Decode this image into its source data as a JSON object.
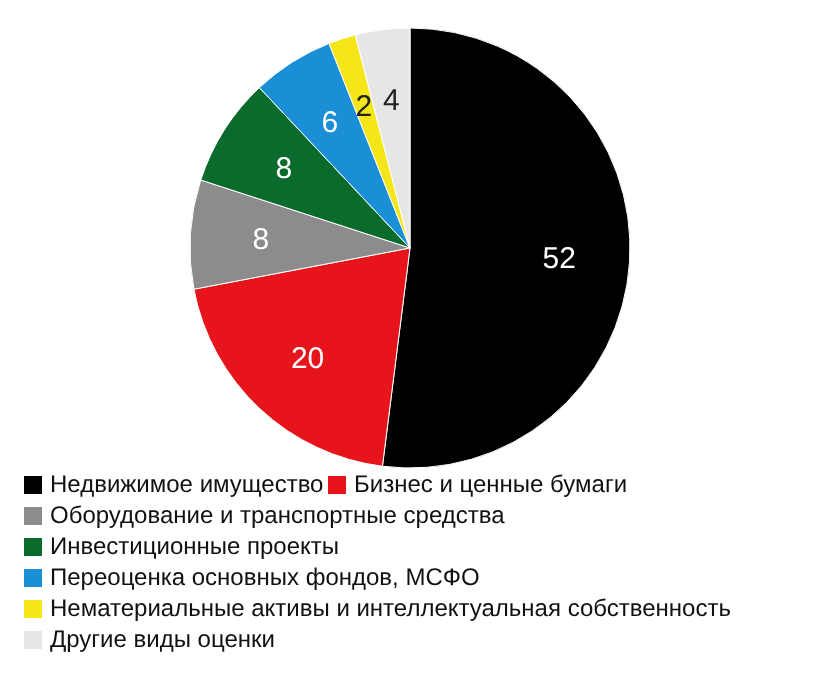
{
  "chart_data": {
    "type": "pie",
    "categories": [
      "Недвижимое имущество",
      "Бизнес и ценные бумаги",
      "Оборудование и транспортные средства",
      "Инвестиционные проекты",
      "Переоценка основных фондов, МСФО",
      "Нематериальные активы и интеллектуальная собственность",
      "Другие виды оценки"
    ],
    "values": [
      52,
      20,
      8,
      8,
      6,
      2,
      4
    ],
    "colors": [
      "#000000",
      "#e8141b",
      "#8c8c8c",
      "#0a6b2c",
      "#1a8fd6",
      "#f5e61a",
      "#e6e6e6"
    ],
    "data_labels": true,
    "legend": "bottom"
  }
}
